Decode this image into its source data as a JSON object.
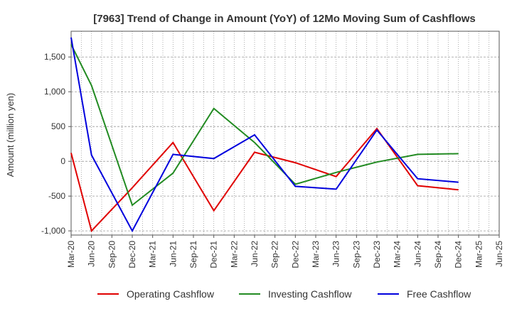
{
  "chart_data": {
    "type": "line",
    "title": "[7963]  Trend of Change in Amount (YoY) of 12Mo Moving Sum of Cashflows",
    "xlabel": "",
    "ylabel": "Amount (million yen)",
    "ylim": [
      -1060,
      1870
    ],
    "yticks": [
      -1000,
      -500,
      0,
      500,
      1000,
      1500
    ],
    "ytick_labels": [
      "-1,000",
      "-500",
      "0",
      "500",
      "1,000",
      "1,500"
    ],
    "categories": [
      "Mar-20",
      "Jun-20",
      "Sep-20",
      "Dec-20",
      "Mar-21",
      "Jun-21",
      "Sep-21",
      "Dec-21",
      "Mar-22",
      "Jun-22",
      "Sep-22",
      "Dec-22",
      "Mar-23",
      "Jun-23",
      "Sep-23",
      "Dec-23",
      "Mar-24",
      "Jun-24",
      "Sep-24",
      "Dec-24",
      "Mar-25",
      "Jun-25"
    ],
    "grid": true,
    "legend_position": "bottom",
    "series": [
      {
        "name": "Operating Cashflow",
        "color": "#e00000",
        "values": [
          120,
          -1000,
          null,
          -380,
          null,
          270,
          null,
          -710,
          null,
          130,
          null,
          -20,
          null,
          -220,
          null,
          470,
          null,
          -350,
          null,
          -410,
          null,
          null
        ]
      },
      {
        "name": "Investing Cashflow",
        "color": "#228b22",
        "values": [
          1680,
          1090,
          null,
          -630,
          null,
          -170,
          null,
          760,
          null,
          270,
          null,
          -330,
          null,
          -160,
          null,
          -10,
          null,
          100,
          null,
          110,
          null,
          null
        ]
      },
      {
        "name": "Free Cashflow",
        "color": "#0000dd",
        "values": [
          1780,
          90,
          null,
          -1000,
          null,
          100,
          null,
          40,
          null,
          380,
          null,
          -360,
          null,
          -400,
          null,
          450,
          null,
          -250,
          null,
          -300,
          null,
          null
        ]
      }
    ]
  }
}
